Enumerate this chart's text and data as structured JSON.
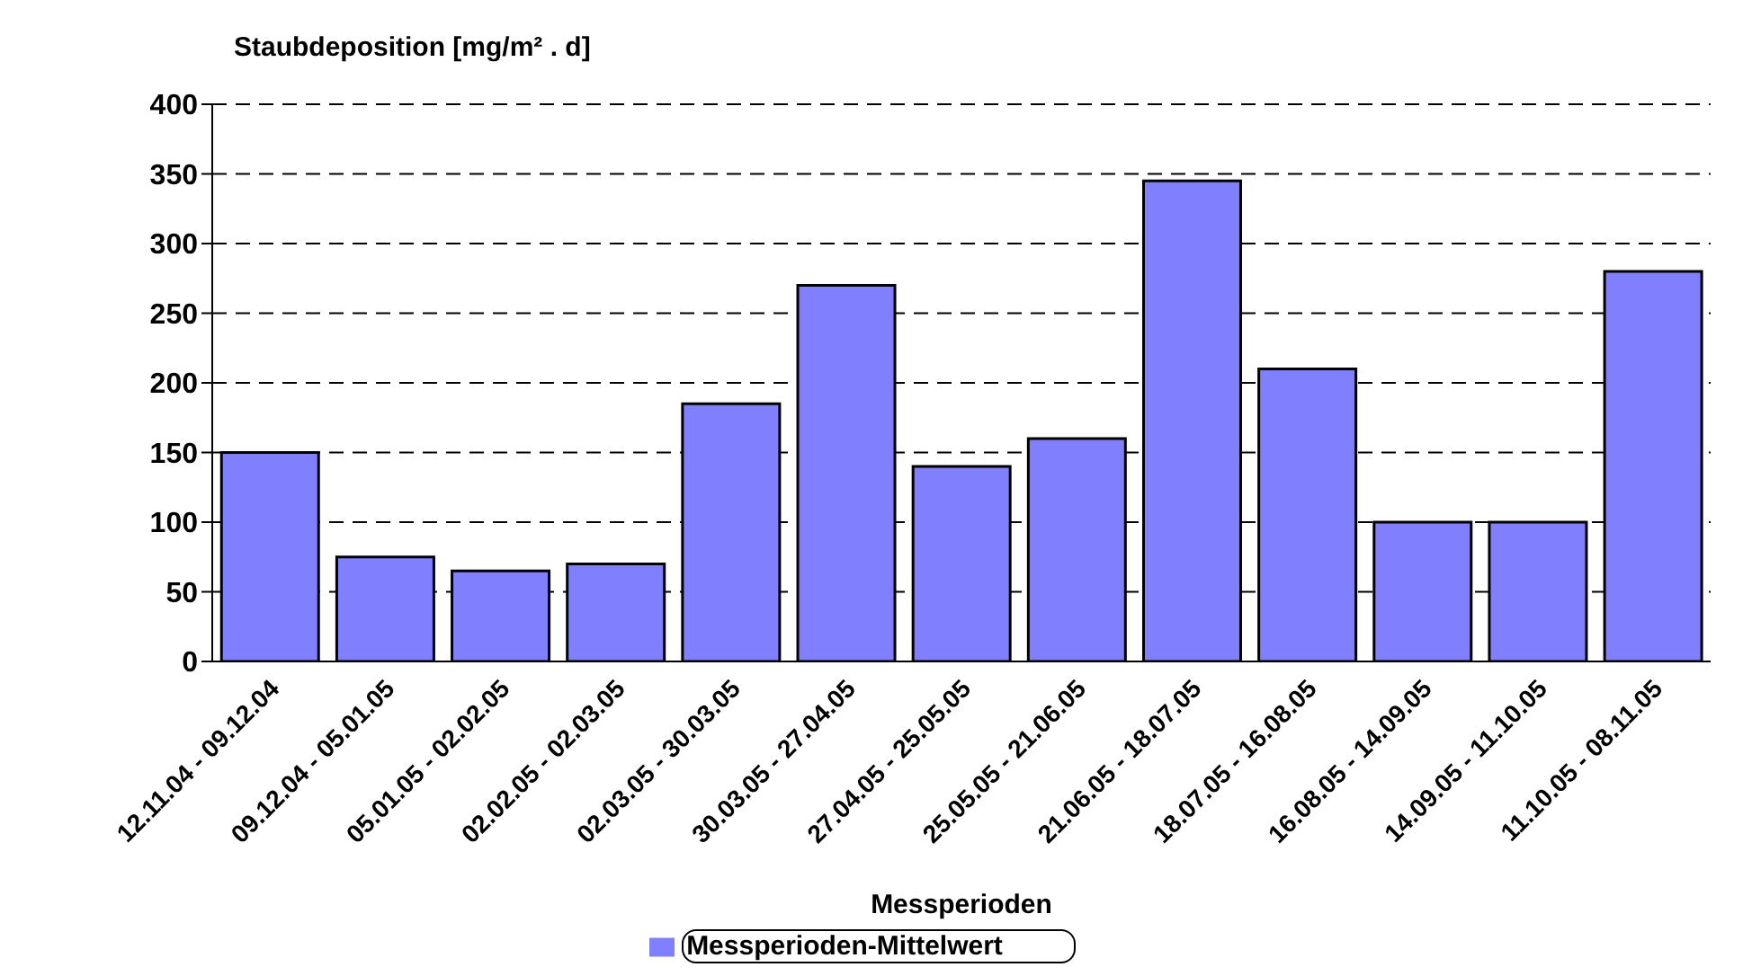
{
  "chart_data": {
    "type": "bar",
    "title": "Staubdeposition [mg/m² . d]",
    "xlabel": "Messperioden",
    "categories": [
      "12.11.04 - 09.12.04",
      "09.12.04 - 05.01.05",
      "05.01.05 - 02.02.05",
      "02.02.05 - 02.03.05",
      "02.03.05 - 30.03.05",
      "30.03.05 - 27.04.05",
      "27.04.05 - 25.05.05",
      "25.05.05 - 21.06.05",
      "21.06.05 - 18.07.05",
      "18.07.05 - 16.08.05",
      "16.08.05 - 14.09.05",
      "14.09.05 - 11.10.05",
      "11.10.05 - 08.11.05"
    ],
    "series": [
      {
        "name": "Messperioden-Mittelwert",
        "color": "#8080ff",
        "values": [
          150,
          75,
          65,
          70,
          185,
          270,
          140,
          160,
          345,
          210,
          100,
          100,
          280
        ]
      }
    ],
    "ylim": [
      0,
      400
    ],
    "yticks": [
      0,
      50,
      100,
      150,
      200,
      250,
      300,
      350,
      400
    ],
    "grid": "y",
    "legend": "bottom"
  }
}
